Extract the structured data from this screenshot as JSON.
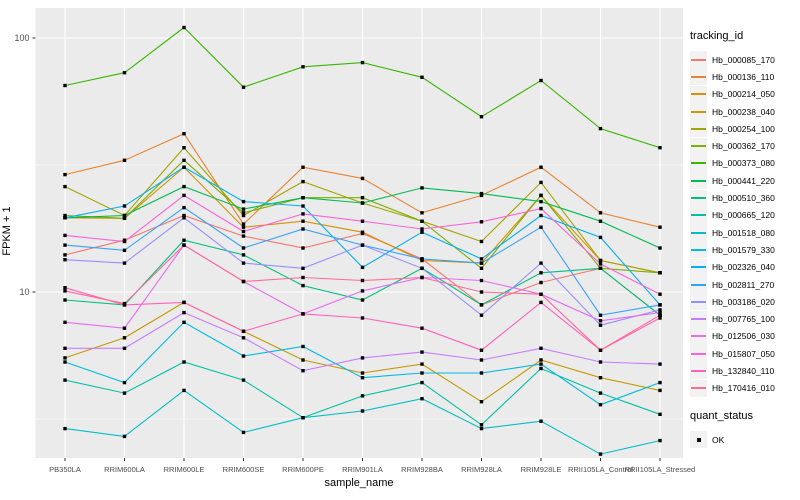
{
  "chart_data": {
    "type": "line",
    "title": "",
    "xlabel": "sample_name",
    "ylabel": "FPKM + 1",
    "y_scale": "log10",
    "y_ticks": [
      100,
      10
    ],
    "y_minor_ticks": [
      31.62,
      3.162
    ],
    "ylim": [
      2.2,
      123
    ],
    "grid": true,
    "panel_bg": "#EBEBEB",
    "grid_color": "#FFFFFF",
    "tick_label_color": "#4D4D4D",
    "marker": "black-square",
    "legend_position": "right",
    "legend_title": "tracking_id",
    "quant_legend": {
      "title": "quant_status",
      "items": [
        {
          "label": "OK",
          "marker": "black-square"
        }
      ]
    },
    "categories": [
      "PB350LA",
      "RRIM600LA",
      "RRIM600LE",
      "RRIM600SE",
      "RRIM600PE",
      "RRIM901LA",
      "RRIM928BA",
      "RRIM928LA",
      "RRIM928LE",
      "RRII105LA_Control",
      "RRII105LA_Stressed"
    ],
    "series": [
      {
        "name": "Hb_000085_170",
        "color": "#F8766D",
        "values": [
          14.0,
          16.0,
          20.0,
          16.6,
          14.9,
          17.0,
          13.5,
          8.9,
          10.9,
          12.4,
          8.1
        ]
      },
      {
        "name": "Hb_000136_110",
        "color": "#EA8331",
        "values": [
          29.0,
          33.0,
          42.0,
          18.5,
          31.0,
          28.0,
          20.5,
          24.0,
          31.0,
          20.5,
          18.0
        ]
      },
      {
        "name": "Hb_000214_050",
        "color": "#D89000",
        "values": [
          19.6,
          19.5,
          31.0,
          18.0,
          19.0,
          17.2,
          13.3,
          13.0,
          24.0,
          13.3,
          11.9
        ]
      },
      {
        "name": "Hb_000238_040",
        "color": "#C49A00",
        "values": [
          5.5,
          6.6,
          9.1,
          7.0,
          5.4,
          4.8,
          5.2,
          3.7,
          5.4,
          4.6,
          4.1
        ]
      },
      {
        "name": "Hb_000254_100",
        "color": "#A3A500",
        "values": [
          26.0,
          20.0,
          37.0,
          20.0,
          27.2,
          22.4,
          19.0,
          15.8,
          27.0,
          13.3,
          11.9
        ]
      },
      {
        "name": "Hb_000362_170",
        "color": "#7CAE00",
        "values": [
          20.0,
          19.5,
          33.0,
          20.5,
          23.5,
          23.5,
          19.0,
          12.4,
          24.0,
          12.4,
          11.9
        ]
      },
      {
        "name": "Hb_000373_080",
        "color": "#39B600",
        "values": [
          65.0,
          73.0,
          110.0,
          64.0,
          77.0,
          80.0,
          70.0,
          49.0,
          68.0,
          44.0,
          37.0
        ]
      },
      {
        "name": "Hb_000441_220",
        "color": "#00BB4E",
        "values": [
          19.6,
          20.0,
          26.0,
          21.2,
          23.5,
          22.4,
          25.7,
          24.4,
          22.7,
          19.0,
          14.9
        ]
      },
      {
        "name": "Hb_000510_360",
        "color": "#00BF7D",
        "values": [
          9.3,
          8.9,
          16.0,
          14.0,
          10.6,
          9.3,
          12.4,
          8.9,
          11.9,
          12.4,
          8.1
        ]
      },
      {
        "name": "Hb_000665_120",
        "color": "#00C1A3",
        "values": [
          4.5,
          4.0,
          5.3,
          4.5,
          3.2,
          3.9,
          4.4,
          3.0,
          5.0,
          4.0,
          3.3
        ]
      },
      {
        "name": "Hb_001518_080",
        "color": "#00BFC4",
        "values": [
          2.9,
          2.7,
          4.1,
          2.8,
          3.2,
          3.4,
          3.8,
          2.9,
          3.1,
          2.3,
          2.6
        ]
      },
      {
        "name": "Hb_001579_330",
        "color": "#00BAE0",
        "values": [
          5.3,
          4.4,
          7.6,
          5.6,
          6.1,
          4.6,
          4.8,
          4.8,
          5.2,
          3.6,
          4.4
        ]
      },
      {
        "name": "Hb_002326_040",
        "color": "#00B0F6",
        "values": [
          19.6,
          21.8,
          31.0,
          22.7,
          21.8,
          12.5,
          17.2,
          13.5,
          20.0,
          16.4,
          8.9
        ]
      },
      {
        "name": "Hb_002811_270",
        "color": "#35A2FF",
        "values": [
          15.3,
          14.6,
          21.5,
          14.9,
          17.7,
          15.3,
          13.5,
          13.0,
          18.0,
          8.1,
          8.9
        ]
      },
      {
        "name": "Hb_003186_020",
        "color": "#9590FF",
        "values": [
          13.4,
          13.0,
          19.6,
          13.0,
          12.4,
          15.3,
          12.4,
          8.1,
          13.0,
          7.4,
          8.5
        ]
      },
      {
        "name": "Hb_007765_100",
        "color": "#C77CFF",
        "values": [
          6.0,
          6.0,
          8.3,
          6.6,
          4.9,
          5.5,
          5.8,
          5.4,
          6.0,
          5.3,
          5.2
        ]
      },
      {
        "name": "Hb_012506_030",
        "color": "#E76BF3",
        "values": [
          7.6,
          7.2,
          15.3,
          11.0,
          8.2,
          10.1,
          11.4,
          11.1,
          9.8,
          7.7,
          8.3
        ]
      },
      {
        "name": "Hb_015807_050",
        "color": "#FA62DB",
        "values": [
          16.7,
          15.8,
          24.0,
          17.3,
          20.3,
          19.0,
          17.7,
          18.9,
          21.3,
          12.9,
          9.8
        ]
      },
      {
        "name": "Hb_132840_110",
        "color": "#FF62BC",
        "values": [
          10.4,
          8.9,
          9.1,
          7.0,
          8.2,
          7.9,
          7.2,
          5.9,
          9.1,
          5.9,
          7.9
        ]
      },
      {
        "name": "Hb_170416_010",
        "color": "#FF6A98",
        "values": [
          10.1,
          9.0,
          15.3,
          11.0,
          11.4,
          11.1,
          11.4,
          10.0,
          9.8,
          5.9,
          8.1
        ]
      }
    ]
  }
}
